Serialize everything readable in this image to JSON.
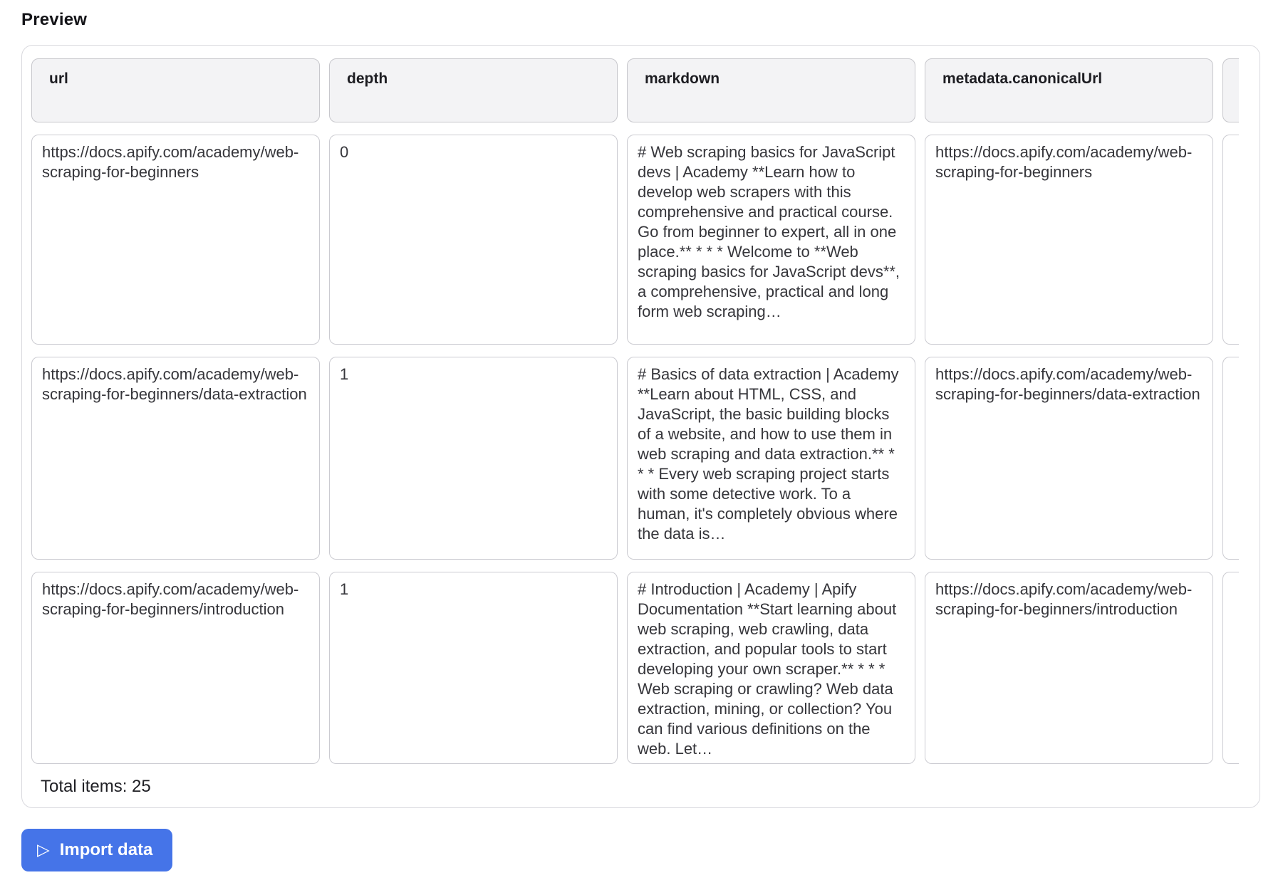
{
  "page": {
    "heading": "Preview"
  },
  "table": {
    "columns": {
      "col1": "url",
      "col2": "depth",
      "col3": "markdown",
      "col4": "metadata.canonicalUrl",
      "col5": ""
    },
    "rows": [
      {
        "url": "https://docs.apify.com/academy/web-scraping-for-beginners",
        "depth": "0",
        "markdown": "# Web scraping basics for JavaScript devs | Academy **Learn how to develop web scrapers with this comprehensive and practical course. Go from beginner to expert, all in one place.** * * * Welcome to **Web scraping basics for JavaScript devs**, a comprehensive, practical and long form web scraping…",
        "canonicalUrl": "https://docs.apify.com/academy/web-scraping-for-beginners"
      },
      {
        "url": "https://docs.apify.com/academy/web-scraping-for-beginners/data-extraction",
        "depth": "1",
        "markdown": "# Basics of data extraction | Academy **Learn about HTML, CSS, and JavaScript, the basic building blocks of a website, and how to use them in web scraping and data extraction.** * * * Every web scraping project starts with some detective work. To a human, it's completely obvious where the data is…",
        "canonicalUrl": "https://docs.apify.com/academy/web-scraping-for-beginners/data-extraction"
      },
      {
        "url": "https://docs.apify.com/academy/web-scraping-for-beginners/introduction",
        "depth": "1",
        "markdown": "# Introduction | Academy | Apify Documentation **Start learning about web scraping, web crawling, data extraction, and popular tools to start developing your own scraper.** * * * Web scraping or crawling? Web data extraction, mining, or collection? You can find various definitions on the web. Let…",
        "canonicalUrl": "https://docs.apify.com/academy/web-scraping-for-beginners/introduction"
      }
    ],
    "total_label": "Total items: 25"
  },
  "actions": {
    "import_label": "Import data",
    "play_icon": "▷"
  },
  "colors": {
    "accent_blue": "#4574e8",
    "header_cell_bg": "#f3f3f5",
    "cell_border": "#cbcbd1",
    "panel_border": "#d9d9de"
  }
}
